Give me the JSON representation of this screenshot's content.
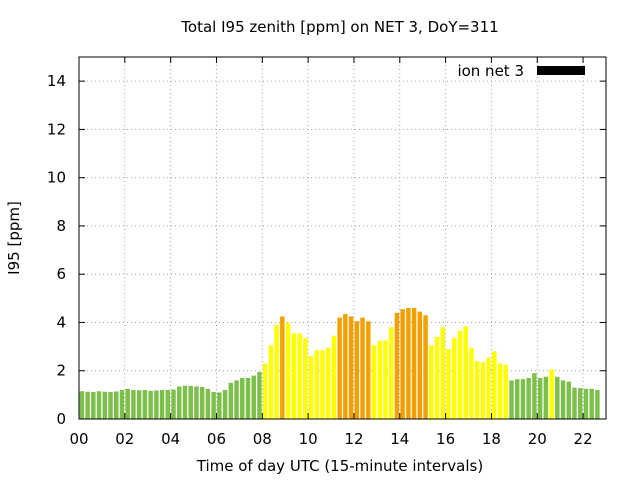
{
  "chart_data": {
    "type": "bar",
    "title": "Total I95 zenith [ppm] on NET 3, DoY=311",
    "xlabel": "Time of day UTC (15-minute intervals)",
    "ylabel": "I95 [ppm]",
    "xlim": [
      0,
      23
    ],
    "ylim": [
      0,
      15
    ],
    "x_ticks": [
      0,
      2,
      4,
      6,
      8,
      10,
      12,
      14,
      16,
      18,
      20,
      22
    ],
    "x_tick_labels": [
      "00",
      "02",
      "04",
      "06",
      "08",
      "10",
      "12",
      "14",
      "16",
      "18",
      "20",
      "22"
    ],
    "y_ticks": [
      0,
      2,
      4,
      6,
      8,
      10,
      12,
      14
    ],
    "y_tick_labels": [
      "0",
      "2",
      "4",
      "6",
      "8",
      "10",
      "12",
      "14"
    ],
    "grid": true,
    "legend": {
      "label": "ion net 3",
      "position": "top-right",
      "color": "#000000"
    },
    "bin_hours": 0.25,
    "color_scale": {
      "green": "#7cbf4a",
      "yellow": "#ffff00",
      "orange": "#f5a000",
      "thresholds": "green < 2, yellow 2–4, orange >= 4"
    },
    "values": [
      1.15,
      1.13,
      1.12,
      1.15,
      1.13,
      1.12,
      1.14,
      1.2,
      1.25,
      1.2,
      1.19,
      1.2,
      1.17,
      1.18,
      1.2,
      1.2,
      1.22,
      1.35,
      1.38,
      1.37,
      1.35,
      1.33,
      1.25,
      1.12,
      1.1,
      1.2,
      1.5,
      1.6,
      1.7,
      1.7,
      1.8,
      1.95,
      2.3,
      3.05,
      3.9,
      4.25,
      3.98,
      3.55,
      3.55,
      3.35,
      2.6,
      2.85,
      2.85,
      2.95,
      3.45,
      4.2,
      4.35,
      4.25,
      4.05,
      4.2,
      4.05,
      3.05,
      3.25,
      3.25,
      3.8,
      4.4,
      4.55,
      4.6,
      4.6,
      4.45,
      4.3,
      3.05,
      3.4,
      3.8,
      2.9,
      3.35,
      3.65,
      3.85,
      2.95,
      2.4,
      2.35,
      2.55,
      2.8,
      2.3,
      2.25,
      1.6,
      1.65,
      1.65,
      1.7,
      1.9,
      1.7,
      1.75,
      2.05,
      1.75,
      1.6,
      1.55,
      1.3,
      1.28,
      1.25,
      1.25,
      1.2
    ]
  }
}
